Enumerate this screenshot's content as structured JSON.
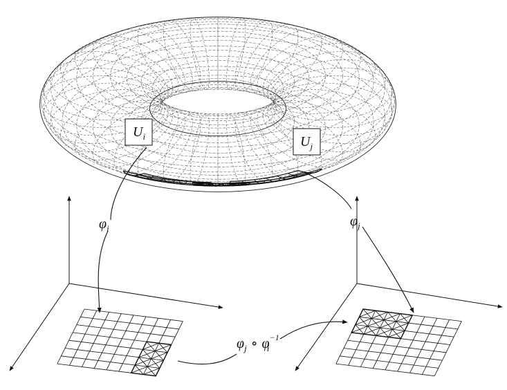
{
  "figure": {
    "labels": {
      "patch_i": {
        "main": "U",
        "sub": "i"
      },
      "patch_j": {
        "main": "U",
        "sub": "j"
      },
      "map_i": {
        "main": "φ",
        "sub": "i"
      },
      "map_j": {
        "main": "φ",
        "sub": "j"
      },
      "transition": {
        "main1": "φ",
        "sub1": "j",
        "op": "∘",
        "main2": "φ",
        "sub2": "i",
        "sup2": "−1"
      }
    },
    "colors": {
      "ink": "#111111",
      "torus_mesh": "#555555",
      "background": "#ffffff"
    }
  }
}
